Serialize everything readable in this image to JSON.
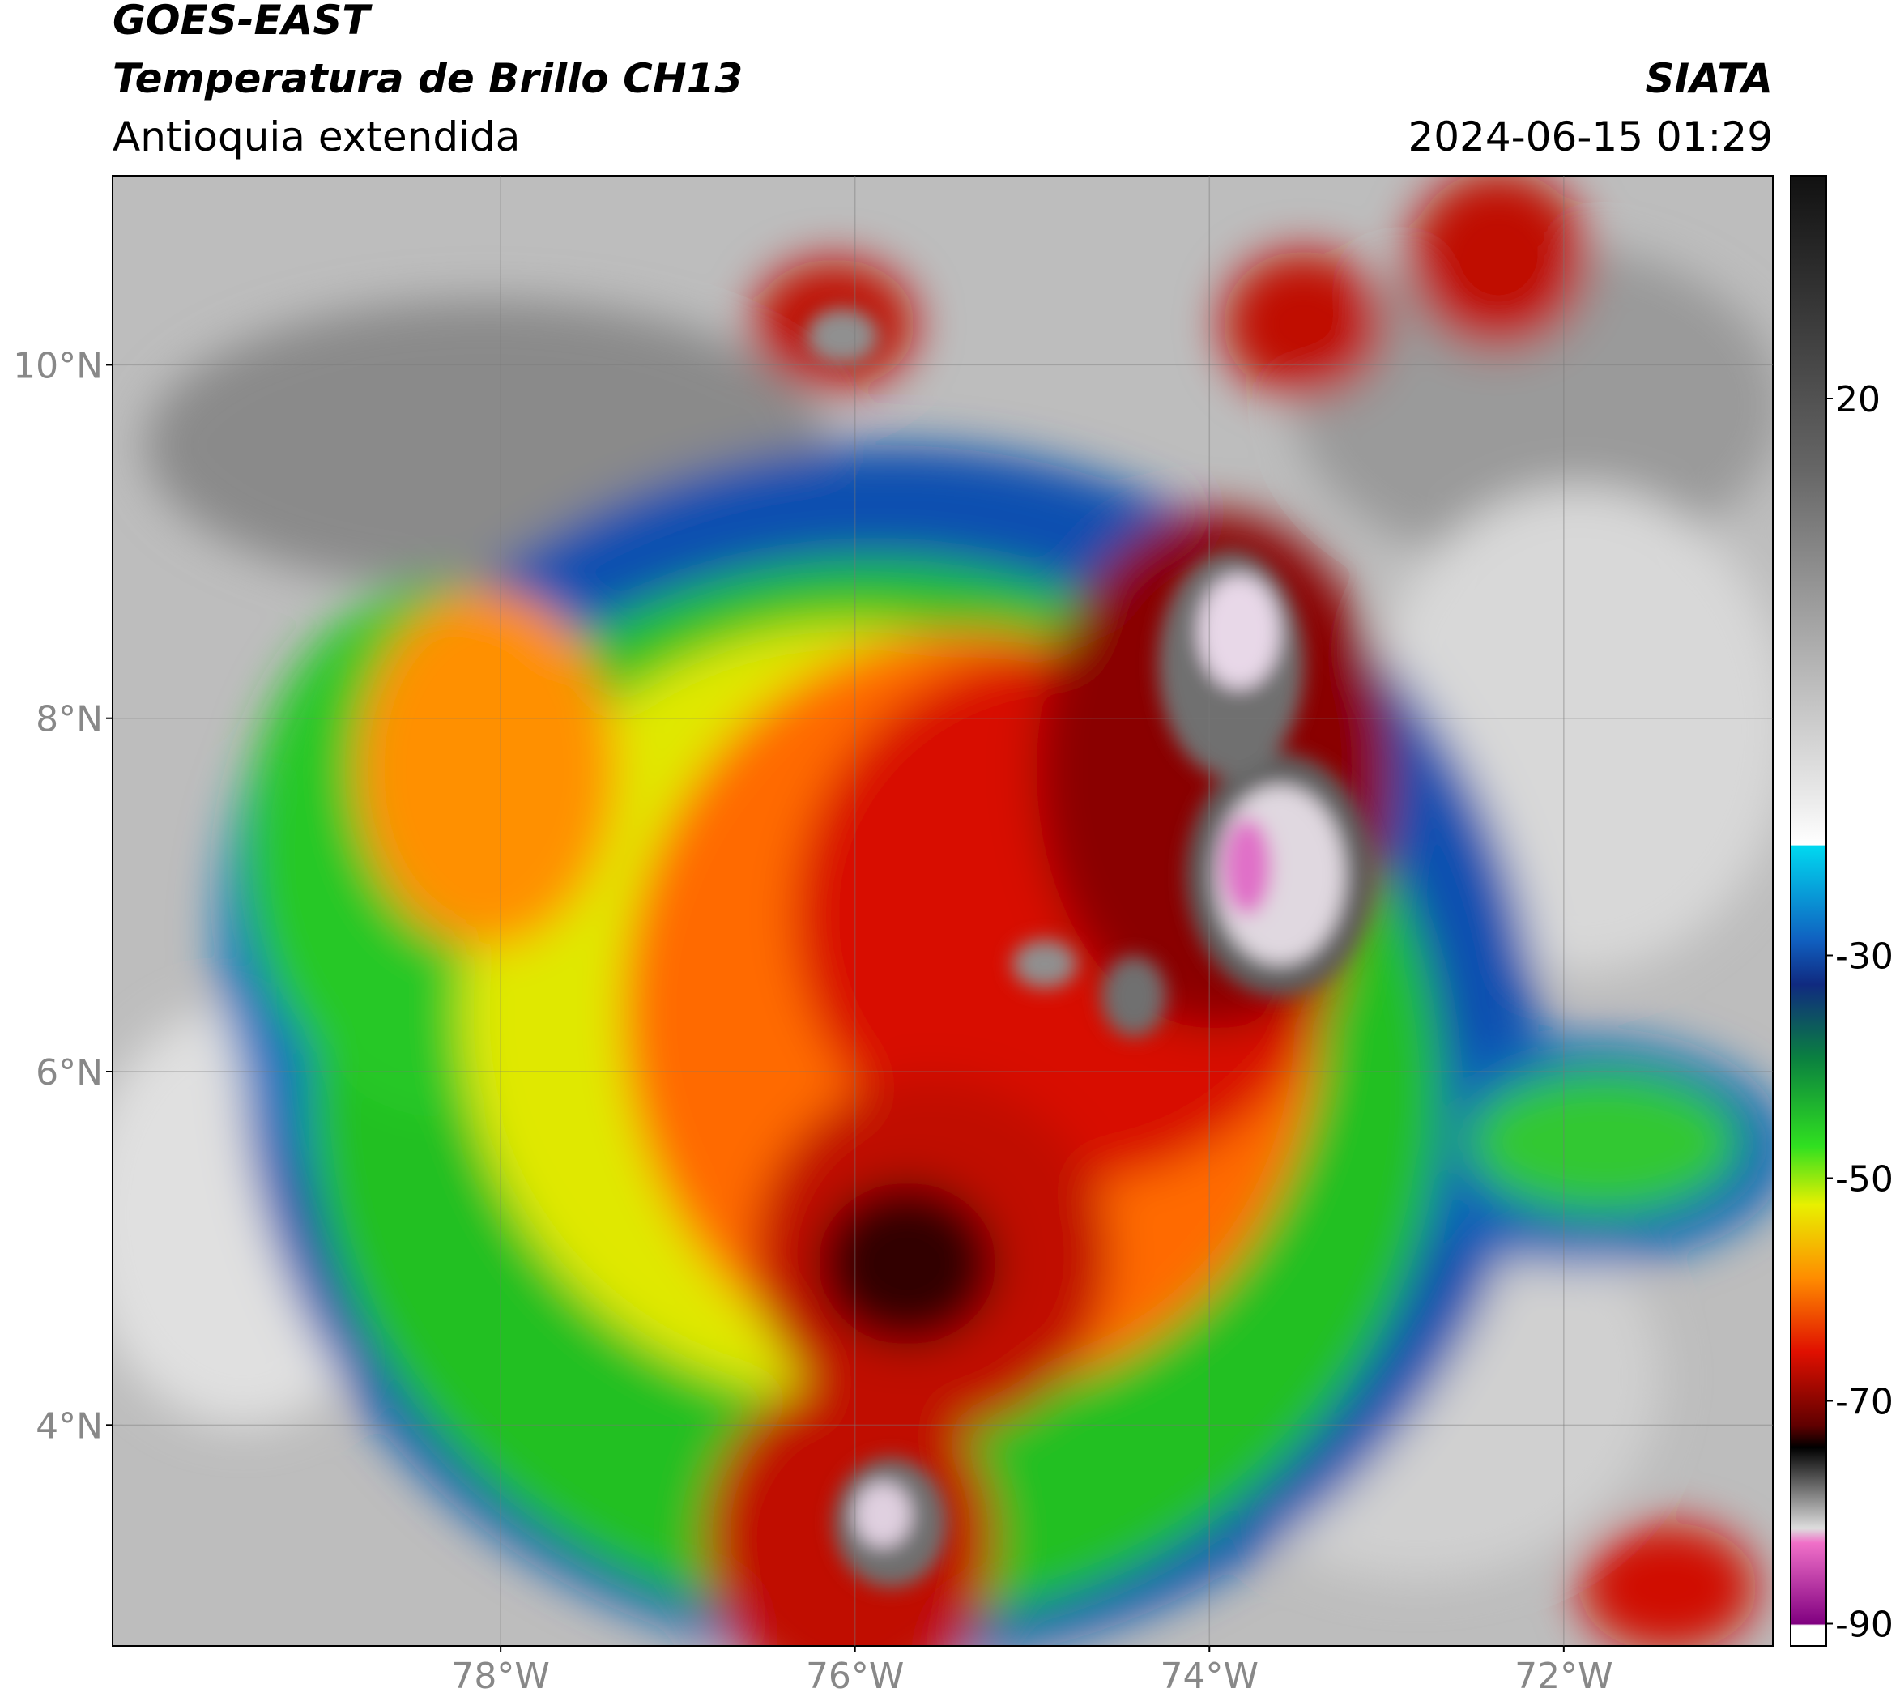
{
  "header": {
    "title": "GOES-EAST",
    "subtitle": "Temperatura de Brillo CH13",
    "region": "Antioquia extendida",
    "source": "SIATA",
    "datetime": "2024-06-15 01:29"
  },
  "map": {
    "xlim": [
      -80.19,
      -70.82
    ],
    "ylim": [
      2.75,
      11.07
    ],
    "grid": true,
    "xticks": [
      {
        "value": -78,
        "label": "78°W"
      },
      {
        "value": -76,
        "label": "76°W"
      },
      {
        "value": -74,
        "label": "74°W"
      },
      {
        "value": -72,
        "label": "72°W"
      }
    ],
    "yticks": [
      {
        "value": 10,
        "label": "10°N"
      },
      {
        "value": 8,
        "label": "8°N"
      },
      {
        "value": 6,
        "label": "6°N"
      },
      {
        "value": 4,
        "label": "4°N"
      }
    ]
  },
  "colorbar": {
    "lim": [
      -92,
      40
    ],
    "ticks": [
      20,
      -30,
      -50,
      -70,
      -90
    ]
  }
}
